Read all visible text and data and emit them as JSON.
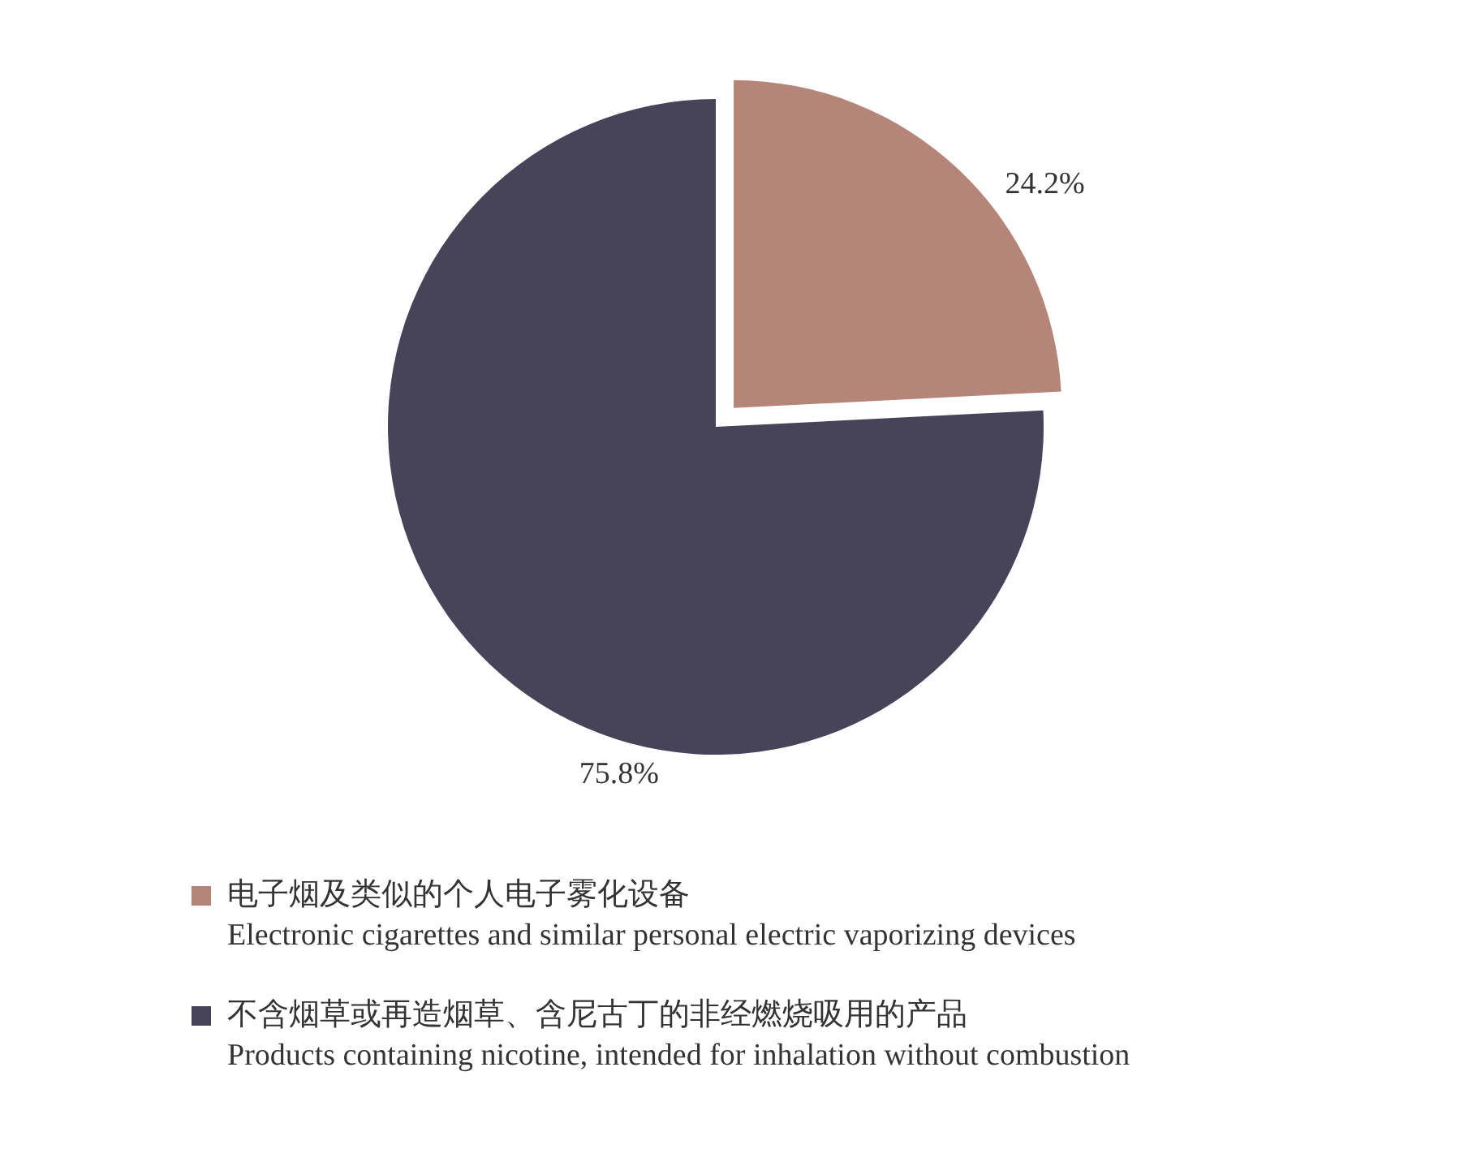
{
  "chart_data": {
    "type": "pie",
    "categories": [
      "电子烟及类似的个人电子雾化设备\nElectronic cigarettes and similar personal electric vaporizing devices",
      "不含烟草或再造烟草、含尼古丁的非经燃烧吸用的产品\nProducts containing nicotine, intended for inhalation without combustion"
    ],
    "values": [
      24.2,
      75.8
    ],
    "colors": [
      "#b5857a",
      "#474459"
    ],
    "value_labels": [
      "24.2%",
      "75.8%"
    ],
    "legend": "bottom left"
  }
}
